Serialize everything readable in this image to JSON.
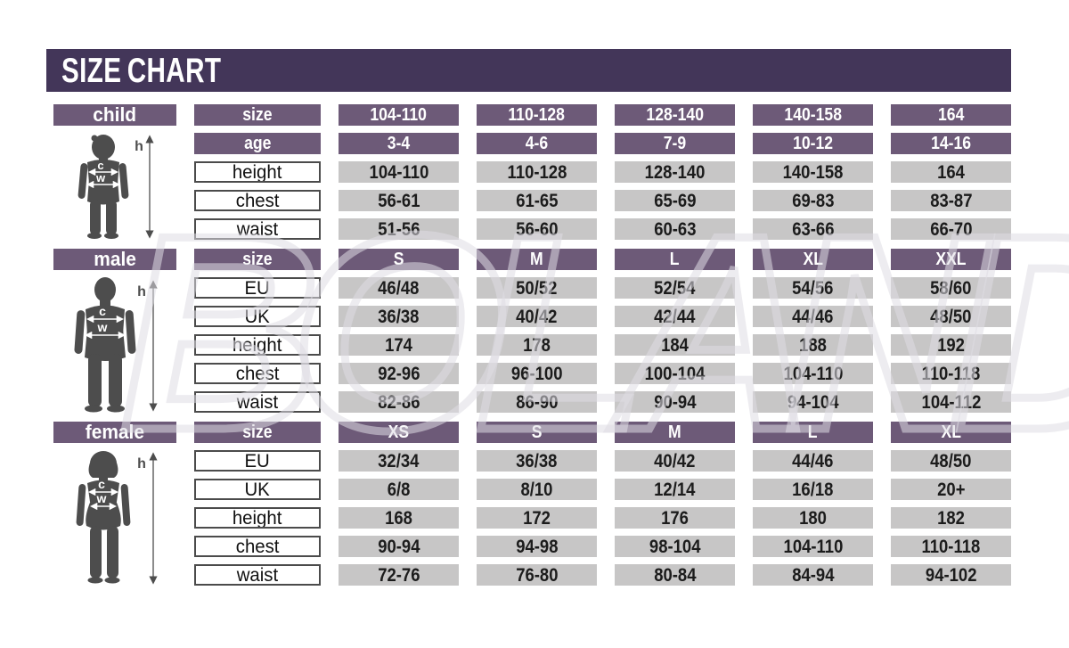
{
  "title": "SIZE CHART",
  "watermark": "BOLAND",
  "colors": {
    "title_bar": "#433659",
    "header_purple": "#6d5a78",
    "cell_gray": "#c7c6c6",
    "figure_gray": "#4d4d4d",
    "label_border": "#4b4b4b"
  },
  "figure_labels": {
    "h": "h",
    "c": "c",
    "w": "w"
  },
  "figure_icons": [
    "child-silhouette-icon",
    "male-silhouette-icon",
    "female-silhouette-icon"
  ],
  "chart_data": [
    {
      "type": "table",
      "title": "child",
      "rows": [
        {
          "label": "size",
          "header": true,
          "values": [
            "104-110",
            "110-128",
            "128-140",
            "140-158",
            "164"
          ]
        },
        {
          "label": "age",
          "header": true,
          "values": [
            "3-4",
            "4-6",
            "7-9",
            "10-12",
            "14-16"
          ]
        },
        {
          "label": "height",
          "header": false,
          "values": [
            "104-110",
            "110-128",
            "128-140",
            "140-158",
            "164"
          ]
        },
        {
          "label": "chest",
          "header": false,
          "values": [
            "56-61",
            "61-65",
            "65-69",
            "69-83",
            "83-87"
          ]
        },
        {
          "label": "waist",
          "header": false,
          "values": [
            "51-56",
            "56-60",
            "60-63",
            "63-66",
            "66-70"
          ]
        }
      ]
    },
    {
      "type": "table",
      "title": "male",
      "rows": [
        {
          "label": "size",
          "header": true,
          "values": [
            "S",
            "M",
            "L",
            "XL",
            "XXL"
          ]
        },
        {
          "label": "EU",
          "header": false,
          "values": [
            "46/48",
            "50/52",
            "52/54",
            "54/56",
            "58/60"
          ]
        },
        {
          "label": "UK",
          "header": false,
          "values": [
            "36/38",
            "40/42",
            "42/44",
            "44/46",
            "48/50"
          ]
        },
        {
          "label": "height",
          "header": false,
          "values": [
            "174",
            "178",
            "184",
            "188",
            "192"
          ]
        },
        {
          "label": "chest",
          "header": false,
          "values": [
            "92-96",
            "96-100",
            "100-104",
            "104-110",
            "110-118"
          ]
        },
        {
          "label": "waist",
          "header": false,
          "values": [
            "82-86",
            "86-90",
            "90-94",
            "94-104",
            "104-112"
          ]
        }
      ]
    },
    {
      "type": "table",
      "title": "female",
      "rows": [
        {
          "label": "size",
          "header": true,
          "values": [
            "XS",
            "S",
            "M",
            "L",
            "XL"
          ]
        },
        {
          "label": "EU",
          "header": false,
          "values": [
            "32/34",
            "36/38",
            "40/42",
            "44/46",
            "48/50"
          ]
        },
        {
          "label": "UK",
          "header": false,
          "values": [
            "6/8",
            "8/10",
            "12/14",
            "16/18",
            "20+"
          ]
        },
        {
          "label": "height",
          "header": false,
          "values": [
            "168",
            "172",
            "176",
            "180",
            "182"
          ]
        },
        {
          "label": "chest",
          "header": false,
          "values": [
            "90-94",
            "94-98",
            "98-104",
            "104-110",
            "110-118"
          ]
        },
        {
          "label": "waist",
          "header": false,
          "values": [
            "72-76",
            "76-80",
            "80-84",
            "84-94",
            "94-102"
          ]
        }
      ]
    }
  ]
}
